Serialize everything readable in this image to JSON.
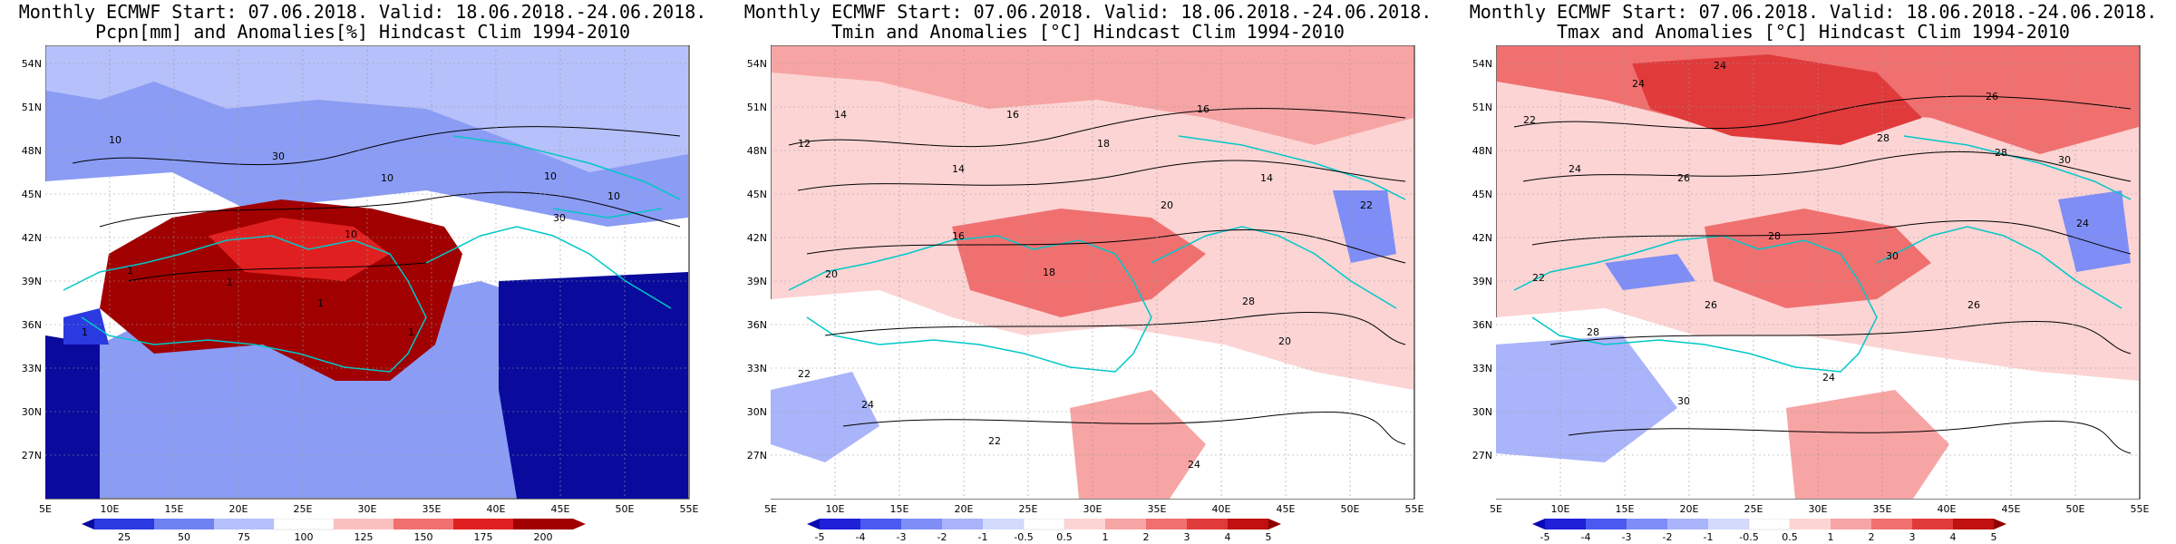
{
  "panels": [
    {
      "title_line1": "Monthly ECMWF Start: 07.06.2018. Valid: 18.06.2018.-24.06.2018.",
      "title_line2": "Pcpn[mm] and Anomalies[%] Hindcast Clim 1994-2010",
      "colorbar_labels": [
        "25",
        "50",
        "75",
        "100",
        "125",
        "150",
        "175",
        "200"
      ],
      "colorbar_colors": [
        "#0a0a9c",
        "#2a3ae0",
        "#6f82f2",
        "#b6c0fa",
        "#ffffff",
        "#fac0c0",
        "#f27070",
        "#e02020",
        "#a00000"
      ],
      "contour_labels": [
        "10",
        "30",
        "10",
        "10",
        "10",
        "1",
        "1",
        "10",
        "30",
        "1",
        "1",
        "1"
      ]
    },
    {
      "title_line1": "Monthly ECMWF Start: 07.06.2018. Valid: 18.06.2018.-24.06.2018.",
      "title_line2": "Tmin and Anomalies [°C] Hindcast Clim 1994-2010",
      "colorbar_labels": [
        "-5",
        "-4",
        "-3",
        "-2",
        "-1",
        "-0.5",
        "0.5",
        "1",
        "2",
        "3",
        "4",
        "5"
      ],
      "colorbar_colors": [
        "#0a0ab4",
        "#2020d8",
        "#4a5af0",
        "#7f8ef6",
        "#aab4fa",
        "#d4dafc",
        "#ffffff",
        "#fcd4d4",
        "#f7a4a4",
        "#f07070",
        "#e03a3a",
        "#c01010",
        "#900000"
      ],
      "contour_labels": [
        "14",
        "16",
        "12",
        "16",
        "18",
        "14",
        "14",
        "22",
        "20",
        "16",
        "20",
        "22",
        "24",
        "28",
        "18",
        "20",
        "22",
        "24"
      ]
    },
    {
      "title_line1": "Monthly ECMWF Start: 07.06.2018. Valid: 18.06.2018.-24.06.2018.",
      "title_line2": "Tmax and Anomalies [°C] Hindcast Clim 1994-2010",
      "colorbar_labels": [
        "-5",
        "-4",
        "-3",
        "-2",
        "-1",
        "-0.5",
        "0.5",
        "1",
        "2",
        "3",
        "4",
        "5"
      ],
      "colorbar_colors": [
        "#0a0ab4",
        "#2020d8",
        "#4a5af0",
        "#7f8ef6",
        "#aab4fa",
        "#d4dafc",
        "#ffffff",
        "#fcd4d4",
        "#f7a4a4",
        "#f07070",
        "#e03a3a",
        "#c01010",
        "#900000"
      ],
      "contour_labels": [
        "24",
        "26",
        "24",
        "22",
        "28",
        "28",
        "30",
        "26",
        "24",
        "28",
        "30",
        "24",
        "26",
        "22",
        "28",
        "30",
        "24",
        "26"
      ]
    }
  ],
  "lat_labels": [
    "54N",
    "51N",
    "48N",
    "45N",
    "42N",
    "39N",
    "36N",
    "33N",
    "30N",
    "27N"
  ],
  "lon_labels": [
    "5E",
    "10E",
    "15E",
    "20E",
    "25E",
    "30E",
    "35E",
    "40E",
    "45E",
    "50E",
    "55E"
  ],
  "coast_color": "#00c8c8"
}
